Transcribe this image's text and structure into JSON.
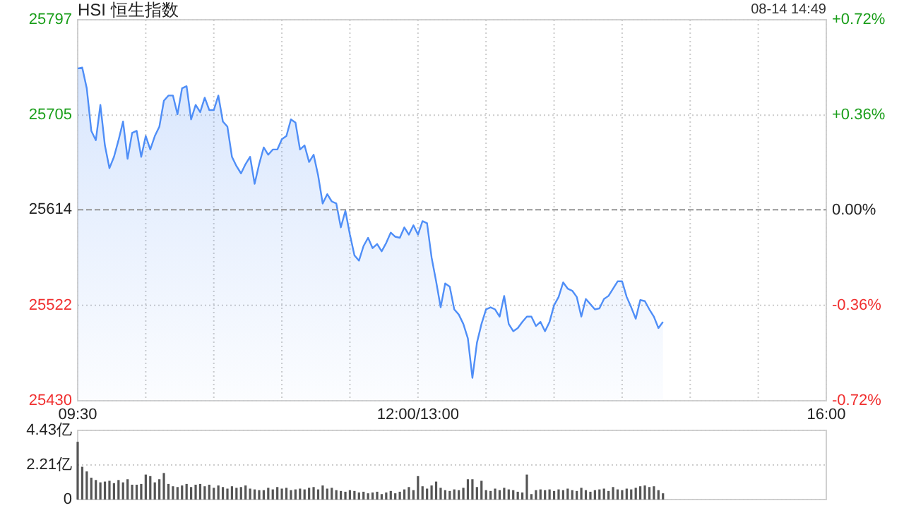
{
  "chart_data": [
    {
      "type": "area",
      "title": "HSI 恒生指数",
      "annotations": [
        "08-14 14:49"
      ],
      "color": "#4f8ef7",
      "categories": [
        "09:30",
        null,
        null,
        null,
        null,
        null,
        null,
        null,
        null,
        null,
        null,
        null,
        null,
        null,
        null,
        null,
        null,
        null,
        null,
        null,
        null,
        null,
        null,
        null,
        null,
        null,
        null,
        null,
        null,
        null,
        null,
        null,
        null,
        null,
        null,
        null,
        null,
        null,
        null,
        null,
        null,
        null,
        null,
        null,
        null,
        null,
        null,
        null,
        null,
        null,
        null,
        null,
        null,
        null,
        null,
        null,
        null,
        null,
        null,
        null,
        null,
        null,
        null,
        null,
        null,
        null,
        null,
        null,
        null,
        null,
        null,
        null,
        null,
        null,
        null,
        "12:00/13:00",
        null,
        null,
        null,
        null,
        null,
        null,
        null,
        null,
        null,
        null,
        null,
        null,
        null,
        null,
        null,
        null,
        null,
        null,
        null,
        null,
        null,
        null,
        null,
        null,
        null,
        null,
        null,
        null,
        null,
        null,
        null,
        null,
        null,
        null,
        null,
        null,
        null,
        null,
        null,
        null,
        null,
        null,
        null,
        null,
        null,
        null,
        null,
        null,
        null,
        null,
        null,
        null,
        null,
        null,
        null,
        null,
        null,
        null,
        null,
        null,
        null,
        null,
        null,
        null,
        null,
        null,
        null,
        null,
        null,
        null,
        null,
        null,
        null,
        null,
        null,
        null,
        null,
        null,
        null,
        null,
        null,
        null,
        null,
        null,
        null,
        null,
        null,
        null,
        null,
        "16:00"
      ],
      "ylim": [
        25430,
        25797
      ],
      "yticks": [
        25430,
        25522,
        25614,
        25705,
        25797
      ],
      "y2lim": [
        -0.72,
        0.72
      ],
      "y2ticks": [
        {
          "value": -0.72,
          "label": "-0.72%"
        },
        {
          "value": -0.36,
          "label": "-0.36%"
        },
        {
          "value": 0,
          "label": "0.00%"
        },
        {
          "value": 0.36,
          "label": "+0.36%"
        },
        {
          "value": 0.72,
          "label": "+0.72%"
        }
      ],
      "grid": true,
      "ref_lines": [
        {
          "axis": "y",
          "value": 25614,
          "line_style": "dashed",
          "color": "#999999"
        }
      ],
      "values": [
        25750,
        25751,
        25731,
        25690,
        25681,
        25715,
        25676,
        25654,
        25665,
        25681,
        25699,
        25663,
        25688,
        25690,
        25665,
        25685,
        25672,
        25685,
        25694,
        25719,
        25724,
        25724,
        25706,
        25731,
        25733,
        25701,
        25715,
        25708,
        25722,
        25710,
        25710,
        25724,
        25699,
        25694,
        25665,
        25656,
        25649,
        25658,
        25665,
        25639,
        25658,
        25674,
        25667,
        25672,
        25672,
        25682,
        25685,
        25701,
        25698,
        25672,
        25676,
        25660,
        25667,
        25647,
        25620,
        25629,
        25622,
        25620,
        25597,
        25613,
        25590,
        25570,
        25565,
        25579,
        25587,
        25577,
        25581,
        25574,
        25582,
        25592,
        25588,
        25587,
        25597,
        25590,
        25599,
        25590,
        25603,
        25601,
        25568,
        25545,
        25520,
        25543,
        25540,
        25518,
        25513,
        25504,
        25490,
        25452,
        25486,
        25504,
        25518,
        25520,
        25518,
        25511,
        25531,
        25504,
        25497,
        25500,
        25506,
        25511,
        25511,
        25502,
        25506,
        25497,
        25506,
        25522,
        25530,
        25544,
        25538,
        25536,
        25530,
        25511,
        25528,
        25523,
        25518,
        25519,
        25528,
        25531,
        25538,
        25545,
        25545,
        25530,
        25520,
        25509,
        25527,
        25526,
        25518,
        25511,
        25500,
        25506,
        null,
        null,
        null,
        null,
        null,
        null,
        null,
        null,
        null,
        null,
        null,
        null,
        null,
        null,
        null,
        null,
        null,
        null,
        null,
        null,
        null,
        null,
        null,
        null,
        null,
        null,
        null,
        null,
        null,
        null,
        null,
        null,
        null,
        null,
        null,
        null
      ]
    },
    {
      "type": "bar",
      "color": "#555555",
      "ylim": [
        0,
        4.43
      ],
      "yticks": [
        0,
        {
          "value": 2.21,
          "label": "2.21亿"
        },
        {
          "value": 4.43,
          "label": "4.43亿"
        }
      ],
      "grid": "y",
      "tick_labels": "y",
      "categories": [
        null,
        null,
        null,
        null,
        null,
        null,
        null,
        null,
        null,
        null,
        null,
        null,
        null,
        null,
        null,
        null,
        null,
        null,
        null,
        null,
        null,
        null,
        null,
        null,
        null,
        null,
        null,
        null,
        null,
        null,
        null,
        null,
        null,
        null,
        null,
        null,
        null,
        null,
        null,
        null,
        null,
        null,
        null,
        null,
        null,
        null,
        null,
        null,
        null,
        null,
        null,
        null,
        null,
        null,
        null,
        null,
        null,
        null,
        null,
        null,
        null,
        null,
        null,
        null,
        null,
        null,
        null,
        null,
        null,
        null,
        null,
        null,
        null,
        null,
        null,
        null,
        null,
        null,
        null,
        null,
        null,
        null,
        null,
        null,
        null,
        null,
        null,
        null,
        null,
        null,
        null,
        null,
        null,
        null,
        null,
        null,
        null,
        null,
        null,
        null,
        null,
        null,
        null,
        null,
        null,
        null,
        null,
        null,
        null,
        null,
        null,
        null,
        null,
        null,
        null,
        null,
        null,
        null,
        null,
        null,
        null,
        null,
        null,
        null,
        null,
        null,
        null,
        null,
        null,
        null,
        null,
        null,
        null,
        null,
        null,
        null,
        null,
        null,
        null,
        null,
        null,
        null,
        null,
        null,
        null,
        null,
        null,
        null,
        null,
        null,
        null,
        null,
        null,
        null,
        null,
        null,
        null,
        null,
        null,
        null,
        null,
        null,
        null,
        null,
        null,
        null
      ],
      "values": [
        3.7,
        2.1,
        1.8,
        1.4,
        1.25,
        1.1,
        1.15,
        1.2,
        1.05,
        1.25,
        1.1,
        1.3,
        0.95,
        0.95,
        1.0,
        1.6,
        1.5,
        1.1,
        1.3,
        1.7,
        1.0,
        0.85,
        0.8,
        0.9,
        1.0,
        0.8,
        0.95,
        1.0,
        0.85,
        0.95,
        0.75,
        0.9,
        0.8,
        0.7,
        0.85,
        0.75,
        0.8,
        0.9,
        0.7,
        0.65,
        0.6,
        0.6,
        0.75,
        0.65,
        0.8,
        0.7,
        0.75,
        0.6,
        0.65,
        0.7,
        0.65,
        0.75,
        0.8,
        0.65,
        0.9,
        0.7,
        0.75,
        0.6,
        0.55,
        0.5,
        0.6,
        0.55,
        0.45,
        0.5,
        0.4,
        0.45,
        0.5,
        0.35,
        0.45,
        0.55,
        0.4,
        0.5,
        0.65,
        0.8,
        0.6,
        1.5,
        0.85,
        0.7,
        0.9,
        1.15,
        0.75,
        0.6,
        0.55,
        0.65,
        0.6,
        0.75,
        1.3,
        1.3,
        0.8,
        1.2,
        0.6,
        0.55,
        0.7,
        0.6,
        0.75,
        0.65,
        0.6,
        0.5,
        0.45,
        1.6,
        0.35,
        0.6,
        0.65,
        0.6,
        0.65,
        0.55,
        0.65,
        0.6,
        0.7,
        0.6,
        0.55,
        0.75,
        0.6,
        0.5,
        0.6,
        0.65,
        0.7,
        0.55,
        0.8,
        0.65,
        0.6,
        0.7,
        0.65,
        0.75,
        0.85,
        0.9,
        0.8,
        0.85,
        0.6,
        0.4,
        null,
        null,
        null,
        null,
        null,
        null,
        null,
        null,
        null,
        null,
        null,
        null,
        null,
        null,
        null,
        null,
        null,
        null,
        null,
        null,
        null,
        null,
        null,
        null,
        null,
        null,
        null,
        null,
        null,
        null,
        null,
        null,
        null,
        null,
        null,
        null
      ]
    }
  ]
}
